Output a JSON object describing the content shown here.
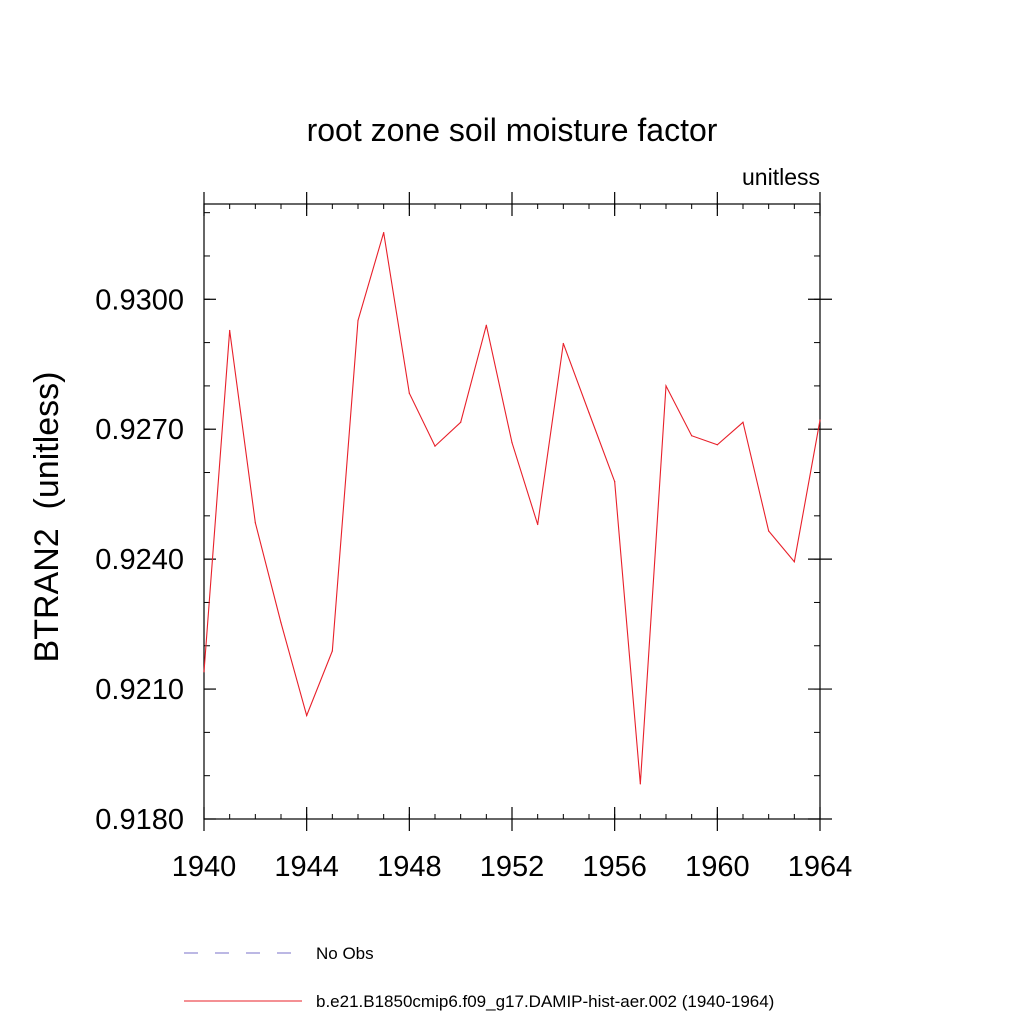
{
  "chart_data": {
    "type": "line",
    "title": "root zone soil moisture factor",
    "subtitle": "unitless",
    "ylabel": "BTRAN2  (unitless)",
    "xlabel": "",
    "xlim": [
      1940,
      1964
    ],
    "ylim": [
      0.918,
      0.9322
    ],
    "x_ticks": [
      1940,
      1944,
      1948,
      1952,
      1956,
      1960,
      1964
    ],
    "x_tick_labels": [
      "1940",
      "1944",
      "1948",
      "1952",
      "1956",
      "1960",
      "1964"
    ],
    "x_minor_step": 1,
    "y_ticks": [
      0.918,
      0.921,
      0.924,
      0.927,
      0.93
    ],
    "y_tick_labels": [
      "0.9180",
      "0.9210",
      "0.9240",
      "0.9270",
      "0.9300"
    ],
    "y_minor_step": 0.001,
    "grid": false,
    "legend_position": "bottom",
    "series": [
      {
        "name": "b.e21.B1850cmip6.f09_g17.DAMIP-hist-aer.002 (1940-1964)",
        "color": "#e8202a",
        "style": "solid",
        "x": [
          1940,
          1941,
          1942,
          1943,
          1944,
          1945,
          1946,
          1947,
          1948,
          1949,
          1950,
          1951,
          1952,
          1953,
          1954,
          1955,
          1956,
          1957,
          1958,
          1959,
          1960,
          1961,
          1962,
          1963,
          1964
        ],
        "y": [
          0.9214,
          0.92928,
          0.92484,
          0.92253,
          0.92039,
          0.92188,
          0.92951,
          0.93154,
          0.92783,
          0.92661,
          0.92716,
          0.9294,
          0.92669,
          0.9248,
          0.92898,
          0.92738,
          0.92579,
          0.91881,
          0.928,
          0.92685,
          0.92664,
          0.92716,
          0.92465,
          0.92394,
          0.92721
        ]
      }
    ],
    "legend": [
      {
        "label": "No Obs",
        "color": "#7a72c8",
        "style": "dashed"
      },
      {
        "label": "b.e21.B1850cmip6.f09_g17.DAMIP-hist-aer.002 (1940-1964)",
        "color": "#e8202a",
        "style": "solid"
      }
    ]
  }
}
